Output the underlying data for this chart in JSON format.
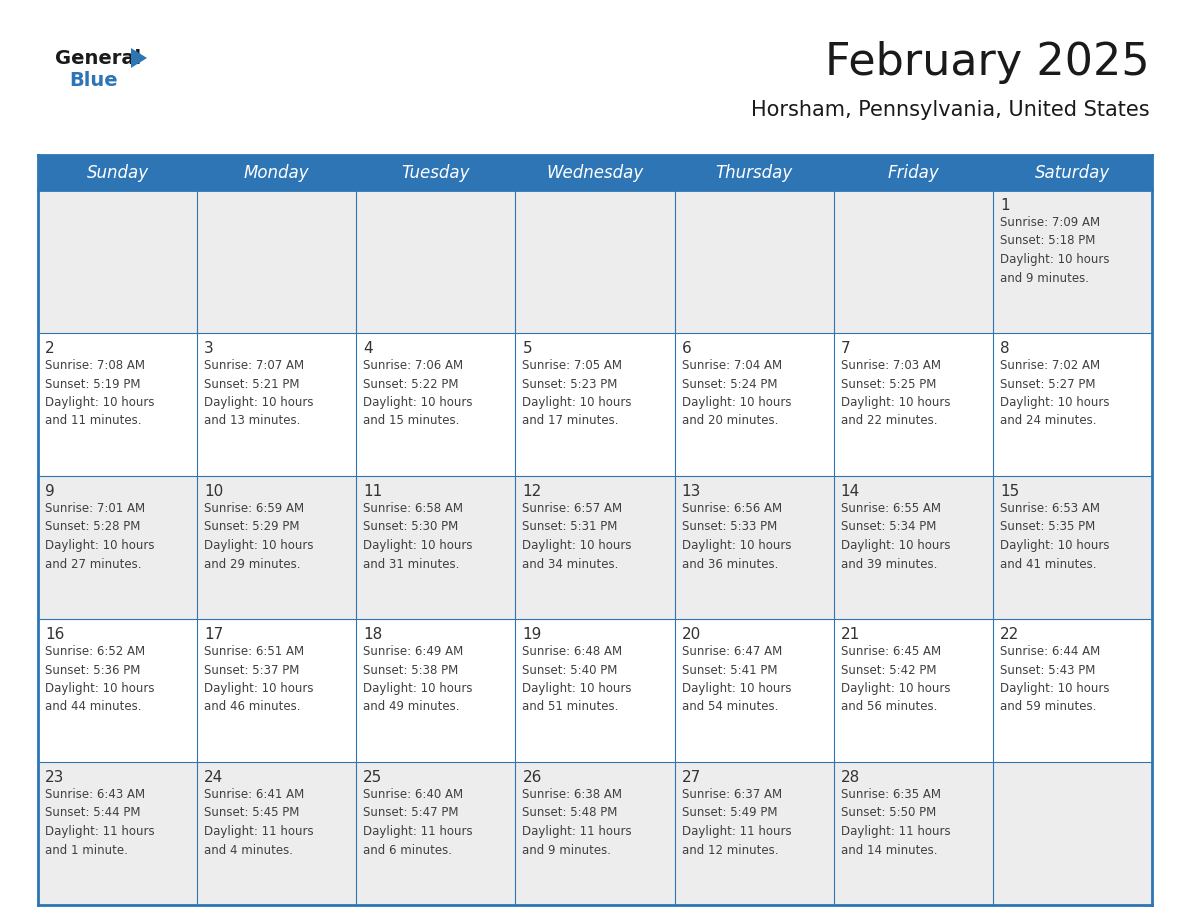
{
  "title": "February 2025",
  "subtitle": "Horsham, Pennsylvania, United States",
  "header_bg": "#2E75B6",
  "header_text_color": "#FFFFFF",
  "cell_bg_white": "#FFFFFF",
  "cell_bg_gray": "#EDEDED",
  "border_color": "#2E75B6",
  "day_number_color": "#333333",
  "cell_text_color": "#404040",
  "days_of_week": [
    "Sunday",
    "Monday",
    "Tuesday",
    "Wednesday",
    "Thursday",
    "Friday",
    "Saturday"
  ],
  "weeks": [
    [
      {
        "day": null,
        "info": null
      },
      {
        "day": null,
        "info": null
      },
      {
        "day": null,
        "info": null
      },
      {
        "day": null,
        "info": null
      },
      {
        "day": null,
        "info": null
      },
      {
        "day": null,
        "info": null
      },
      {
        "day": 1,
        "info": "Sunrise: 7:09 AM\nSunset: 5:18 PM\nDaylight: 10 hours\nand 9 minutes."
      }
    ],
    [
      {
        "day": 2,
        "info": "Sunrise: 7:08 AM\nSunset: 5:19 PM\nDaylight: 10 hours\nand 11 minutes."
      },
      {
        "day": 3,
        "info": "Sunrise: 7:07 AM\nSunset: 5:21 PM\nDaylight: 10 hours\nand 13 minutes."
      },
      {
        "day": 4,
        "info": "Sunrise: 7:06 AM\nSunset: 5:22 PM\nDaylight: 10 hours\nand 15 minutes."
      },
      {
        "day": 5,
        "info": "Sunrise: 7:05 AM\nSunset: 5:23 PM\nDaylight: 10 hours\nand 17 minutes."
      },
      {
        "day": 6,
        "info": "Sunrise: 7:04 AM\nSunset: 5:24 PM\nDaylight: 10 hours\nand 20 minutes."
      },
      {
        "day": 7,
        "info": "Sunrise: 7:03 AM\nSunset: 5:25 PM\nDaylight: 10 hours\nand 22 minutes."
      },
      {
        "day": 8,
        "info": "Sunrise: 7:02 AM\nSunset: 5:27 PM\nDaylight: 10 hours\nand 24 minutes."
      }
    ],
    [
      {
        "day": 9,
        "info": "Sunrise: 7:01 AM\nSunset: 5:28 PM\nDaylight: 10 hours\nand 27 minutes."
      },
      {
        "day": 10,
        "info": "Sunrise: 6:59 AM\nSunset: 5:29 PM\nDaylight: 10 hours\nand 29 minutes."
      },
      {
        "day": 11,
        "info": "Sunrise: 6:58 AM\nSunset: 5:30 PM\nDaylight: 10 hours\nand 31 minutes."
      },
      {
        "day": 12,
        "info": "Sunrise: 6:57 AM\nSunset: 5:31 PM\nDaylight: 10 hours\nand 34 minutes."
      },
      {
        "day": 13,
        "info": "Sunrise: 6:56 AM\nSunset: 5:33 PM\nDaylight: 10 hours\nand 36 minutes."
      },
      {
        "day": 14,
        "info": "Sunrise: 6:55 AM\nSunset: 5:34 PM\nDaylight: 10 hours\nand 39 minutes."
      },
      {
        "day": 15,
        "info": "Sunrise: 6:53 AM\nSunset: 5:35 PM\nDaylight: 10 hours\nand 41 minutes."
      }
    ],
    [
      {
        "day": 16,
        "info": "Sunrise: 6:52 AM\nSunset: 5:36 PM\nDaylight: 10 hours\nand 44 minutes."
      },
      {
        "day": 17,
        "info": "Sunrise: 6:51 AM\nSunset: 5:37 PM\nDaylight: 10 hours\nand 46 minutes."
      },
      {
        "day": 18,
        "info": "Sunrise: 6:49 AM\nSunset: 5:38 PM\nDaylight: 10 hours\nand 49 minutes."
      },
      {
        "day": 19,
        "info": "Sunrise: 6:48 AM\nSunset: 5:40 PM\nDaylight: 10 hours\nand 51 minutes."
      },
      {
        "day": 20,
        "info": "Sunrise: 6:47 AM\nSunset: 5:41 PM\nDaylight: 10 hours\nand 54 minutes."
      },
      {
        "day": 21,
        "info": "Sunrise: 6:45 AM\nSunset: 5:42 PM\nDaylight: 10 hours\nand 56 minutes."
      },
      {
        "day": 22,
        "info": "Sunrise: 6:44 AM\nSunset: 5:43 PM\nDaylight: 10 hours\nand 59 minutes."
      }
    ],
    [
      {
        "day": 23,
        "info": "Sunrise: 6:43 AM\nSunset: 5:44 PM\nDaylight: 11 hours\nand 1 minute."
      },
      {
        "day": 24,
        "info": "Sunrise: 6:41 AM\nSunset: 5:45 PM\nDaylight: 11 hours\nand 4 minutes."
      },
      {
        "day": 25,
        "info": "Sunrise: 6:40 AM\nSunset: 5:47 PM\nDaylight: 11 hours\nand 6 minutes."
      },
      {
        "day": 26,
        "info": "Sunrise: 6:38 AM\nSunset: 5:48 PM\nDaylight: 11 hours\nand 9 minutes."
      },
      {
        "day": 27,
        "info": "Sunrise: 6:37 AM\nSunset: 5:49 PM\nDaylight: 11 hours\nand 12 minutes."
      },
      {
        "day": 28,
        "info": "Sunrise: 6:35 AM\nSunset: 5:50 PM\nDaylight: 11 hours\nand 14 minutes."
      },
      {
        "day": null,
        "info": null
      }
    ]
  ]
}
